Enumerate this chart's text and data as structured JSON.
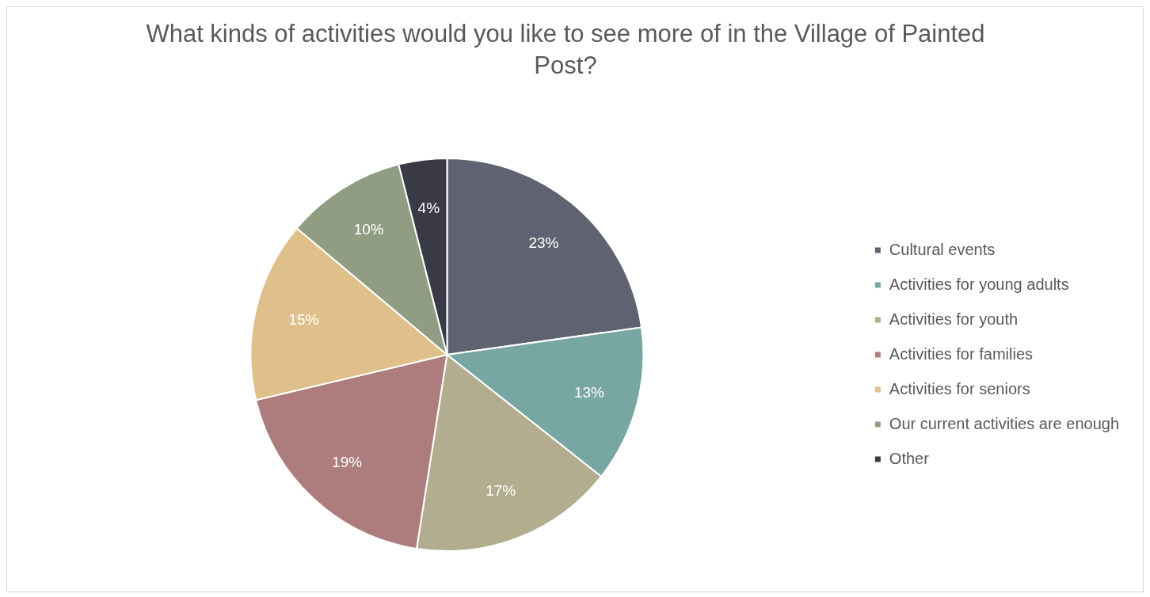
{
  "chart_data": {
    "type": "pie",
    "title": "What kinds of activities would you like to see more of in the Village of Painted Post?",
    "categories": [
      "Cultural events",
      "Activities for young adults",
      "Activities for youth",
      "Activities for families",
      "Activities for seniors",
      "Our current activities are enough",
      "Other"
    ],
    "values": [
      23,
      13,
      17,
      19,
      15,
      10,
      4
    ],
    "value_labels": [
      "23%",
      "13%",
      "17%",
      "19%",
      "15%",
      "10%",
      "4%"
    ],
    "colors": [
      "#5f6270",
      "#78a7a3",
      "#b2ad8e",
      "#ad7d7d",
      "#dfc08a",
      "#909d82",
      "#3a3a46"
    ],
    "legend": "right"
  }
}
